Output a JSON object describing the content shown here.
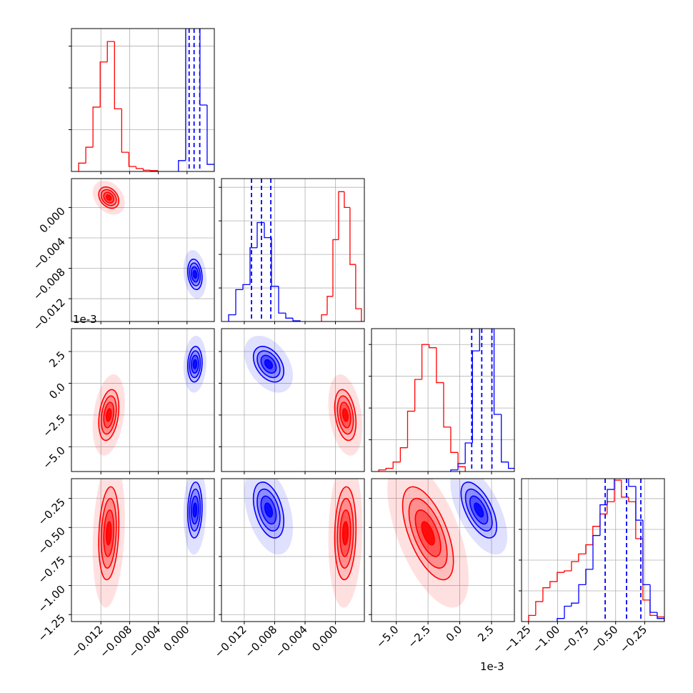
{
  "chart_data": {
    "type": "corner",
    "params": [
      {
        "lim": [
          -0.0161,
          0.0038
        ],
        "ticks": [
          {
            "value": -0.012,
            "label": "−0.012"
          },
          {
            "value": -0.008,
            "label": "−0.008"
          },
          {
            "value": -0.004,
            "label": "−0.004"
          },
          {
            "value": 0.0,
            "label": "0.000"
          }
        ],
        "hist_ylim": [
          0,
          3.42
        ],
        "hist_yticks": [
          1,
          2,
          3
        ]
      },
      {
        "lim": [
          -0.015,
          0.0038
        ],
        "ticks": [
          {
            "value": -0.012,
            "label": "−0.012"
          },
          {
            "value": -0.008,
            "label": "−0.008"
          },
          {
            "value": -0.004,
            "label": "−0.004"
          },
          {
            "value": 0.0,
            "label": "0.000"
          }
        ],
        "hist_ylim": [
          0,
          4.26
        ],
        "hist_yticks": [
          1,
          2,
          3,
          4
        ]
      },
      {
        "lim": [
          -6.95,
          4.3
        ],
        "offset": "1e-3",
        "ticks": [
          {
            "value": -5.0,
            "label": "−5.0"
          },
          {
            "value": -2.5,
            "label": "−2.5"
          },
          {
            "value": 0.0,
            "label": "0.0"
          },
          {
            "value": 2.5,
            "label": "2.5"
          }
        ],
        "hist_ylim": [
          0,
          4.5
        ],
        "hist_yticks": [
          1,
          2,
          3,
          4
        ]
      },
      {
        "lim": [
          -1.31,
          -0.08
        ],
        "ticks": [
          {
            "value": -1.25,
            "label": "−1.25"
          },
          {
            "value": -1.0,
            "label": "−1.00"
          },
          {
            "value": -0.75,
            "label": "−0.75"
          },
          {
            "value": -0.5,
            "label": "−0.50"
          },
          {
            "value": -0.25,
            "label": "−0.25"
          }
        ],
        "hist_ylim": [
          0,
          4.65
        ],
        "hist_yticks": [
          1,
          2,
          3,
          4
        ]
      }
    ],
    "series": [
      {
        "color": "#ff0000",
        "mean": [
          -0.0109,
          0.0013,
          -2.5,
          -0.55
        ],
        "sd": [
          0.0007,
          0.0007,
          1.0,
          0.2
        ],
        "corr": [
          [
            -0.3
          ],
          [
            0.3,
            -0.3
          ],
          [
            0.2,
            0.1,
            -0.6
          ]
        ],
        "hist": [
          {
            "bins": [
              -0.0151,
              -0.0141,
              -0.0131,
              -0.0121,
              -0.0111,
              -0.0101,
              -0.0091,
              -0.0081,
              -0.0071,
              -0.0061,
              -0.0051,
              -0.0041
            ],
            "counts": [
              0.2,
              0.58,
              1.54,
              2.62,
              3.11,
              1.5,
              0.46,
              0.12,
              0.07,
              0.03,
              0.02
            ]
          },
          {
            "bins": [
              -0.00184,
              -0.00109,
              -0.00034,
              0.00041,
              0.00116,
              0.00191,
              0.00266,
              0.00341
            ],
            "counts": [
              0.2,
              0.75,
              2.44,
              3.87,
              3.4,
              1.7,
              0.38
            ]
          },
          {
            "bins": [
              -6.38,
              -5.81,
              -5.25,
              -4.68,
              -4.11,
              -3.54,
              -2.98,
              -2.41,
              -1.84,
              -1.27,
              -0.71,
              -0.14,
              0.43
            ],
            "counts": [
              0.05,
              0.1,
              0.3,
              0.75,
              1.9,
              2.9,
              4.0,
              3.9,
              2.8,
              1.4,
              0.6,
              0.15
            ]
          },
          {
            "bins": [
              -1.249,
              -1.188,
              -1.126,
              -1.065,
              -1.003,
              -0.942,
              -0.88,
              -0.819,
              -0.757,
              -0.696,
              -0.634,
              -0.573,
              -0.511,
              -0.45,
              -0.388,
              -0.327,
              -0.265,
              -0.204,
              -0.142,
              -0.081
            ],
            "counts": [
              0.2,
              0.65,
              1.1,
              1.3,
              1.6,
              1.65,
              1.95,
              2.2,
              2.5,
              3.1,
              3.5,
              3.9,
              4.6,
              4.05,
              3.9,
              2.7,
              0.7,
              0.2,
              0.15
            ]
          }
        ]
      },
      {
        "color": "#0000ff",
        "mean": [
          0.0011,
          -0.0088,
          1.5,
          -0.35
        ],
        "sd": [
          0.0005,
          0.001,
          0.7,
          0.12
        ],
        "corr": [
          [
            -0.2
          ],
          [
            0.1,
            -0.4
          ],
          [
            0.1,
            -0.4,
            -0.6
          ]
        ],
        "quantiles": [
          [
            0.00029,
            0.00098,
            0.00177
          ],
          [
            -0.01105,
            -0.00974,
            -0.00851
          ],
          [
            0.94,
            1.73,
            2.53
          ],
          [
            -0.59,
            -0.406,
            -0.283
          ]
        ],
        "hist": [
          {
            "bins": [
              -0.0012,
              -0.0002,
              0.0008,
              0.0018,
              0.0028,
              0.0038
            ],
            "counts": [
              0.26,
              4.2,
              4.5,
              1.59,
              0.17
            ]
          },
          {
            "bins": [
              -0.01406,
              -0.01312,
              -0.01218,
              -0.01124,
              -0.0103,
              -0.00936,
              -0.00842,
              -0.00748,
              -0.00654,
              -0.0056,
              -0.00466
            ],
            "counts": [
              0.2,
              0.95,
              1.1,
              2.2,
              2.95,
              2.5,
              1.05,
              0.25,
              0.1,
              0.02
            ]
          },
          {
            "bins": [
              -0.71,
              -0.14,
              0.43,
              1.0,
              1.56,
              2.13,
              2.7,
              3.27,
              3.83,
              4.4
            ],
            "counts": [
              0.05,
              0.25,
              0.9,
              3.8,
              4.6,
              4.6,
              1.8,
              0.3,
              0.1
            ]
          },
          {
            "bins": [
              -1.003,
              -0.941,
              -0.88,
              -0.818,
              -0.757,
              -0.695,
              -0.634,
              -0.572,
              -0.511,
              -0.449,
              -0.388,
              -0.326,
              -0.265,
              -0.203,
              -0.142,
              -0.08
            ],
            "counts": [
              0.1,
              0.5,
              0.6,
              1.2,
              1.7,
              2.8,
              3.8,
              4.3,
              4.7,
              4.7,
              4.4,
              3.3,
              1.2,
              0.3,
              0.1
            ]
          }
        ]
      }
    ]
  }
}
